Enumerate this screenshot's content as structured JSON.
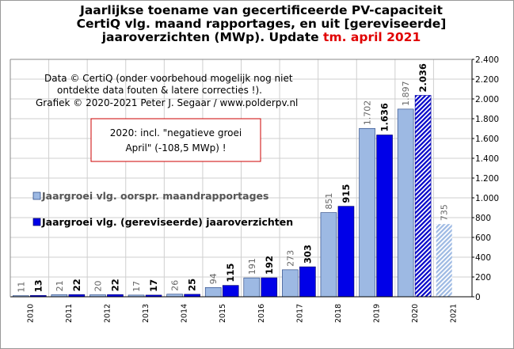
{
  "title": {
    "line1": "Jaarlijkse toename van gecertificeerde PV-capaciteit",
    "line2": "CertiQ vlg. maand rapportages, en uit [gereviseerde]",
    "line3": "jaaroverzichten (MWp). Update",
    "line3_accent": "tm. april 2021"
  },
  "annotations": {
    "source_line1": "Data © CertiQ (onder voorbehoud mogelijk nog niet",
    "source_line2": "ontdekte data fouten & latere correcties !).",
    "source_line3": "Grafiek © 2020-2021 Peter J. Segaar / www.polderpv.nl",
    "note_line1": "2020: incl. \"negatieve groei",
    "note_line2": "April\" (-108,5 MWp) !"
  },
  "colors": {
    "series1": "#9db9e3",
    "series1_stroke": "#1a3a7a",
    "series2": "#0000e8",
    "series2_stroke": "#000060",
    "note_border": "#cc0000",
    "grid": "#cfcfcf",
    "title_accent": "#e00000"
  },
  "chart_data": {
    "type": "bar",
    "categories": [
      "2010",
      "2011",
      "2012",
      "2013",
      "2014",
      "2015",
      "2016",
      "2017",
      "2018",
      "2019",
      "2020",
      "2021"
    ],
    "series": [
      {
        "name": "Jaargroei vlg. oorspr. maandrapportages",
        "values": [
          11,
          21,
          20,
          17,
          26,
          94,
          191,
          273,
          851,
          1702,
          1897,
          735
        ],
        "labels": [
          "11",
          "21",
          "20",
          "17",
          "26",
          "94",
          "191",
          "273",
          "851",
          "1.702",
          "1.897",
          "735"
        ]
      },
      {
        "name": "Jaargroei vlg. (gereviseerde) jaaroverzichten",
        "values": [
          13,
          22,
          22,
          17,
          25,
          115,
          192,
          303,
          915,
          1636,
          2036,
          null
        ],
        "labels": [
          "13",
          "22",
          "22",
          "17",
          "25",
          "115",
          "192",
          "303",
          "915",
          "1.636",
          "2.036",
          ""
        ]
      }
    ],
    "hatched": [
      "2020 gereviseerde jaaroverzichten",
      "2021 oorspr. maandrapportages"
    ],
    "ylim": [
      0,
      2400
    ],
    "yticks": [
      0,
      200,
      400,
      600,
      800,
      1000,
      1200,
      1400,
      1600,
      1800,
      2000,
      2200,
      2400
    ],
    "ytick_labels": [
      "0",
      "200",
      "400",
      "600",
      "800",
      "1.000",
      "1.200",
      "1.400",
      "1.600",
      "1.800",
      "2.000",
      "2.200",
      "2.400"
    ],
    "y_axis_side": "right",
    "grid": true,
    "legend_position": "middle-left"
  }
}
